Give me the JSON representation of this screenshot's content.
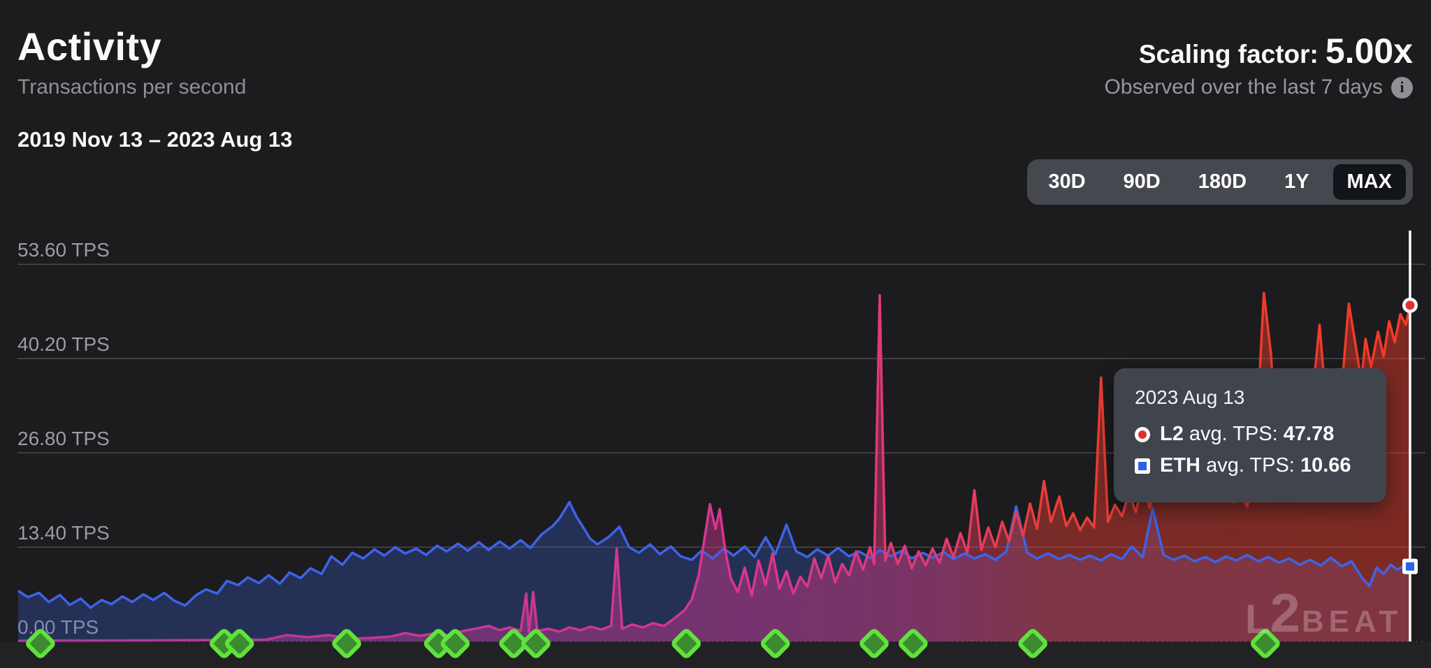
{
  "header": {
    "title": "Activity",
    "subtitle": "Transactions per second",
    "scaling_label": "Scaling factor:",
    "scaling_value": "5.00x",
    "observed_note": "Observed over the last 7 days"
  },
  "date_range": "2019 Nov 13 – 2023 Aug 13",
  "range_selector": {
    "options": [
      "30D",
      "90D",
      "180D",
      "1Y",
      "MAX"
    ],
    "selected": "MAX"
  },
  "tooltip": {
    "date": "2023 Aug 13",
    "rows": [
      {
        "name": "L2",
        "label": "avg. TPS:",
        "value": "47.78",
        "marker": "red-circle"
      },
      {
        "name": "ETH",
        "label": "avg. TPS:",
        "value": "10.66",
        "marker": "blue-square"
      }
    ]
  },
  "watermark": {
    "l": "L",
    "two": "2",
    "beat": "BEAT"
  },
  "colors": {
    "background": "#1c1c1e",
    "grid": "#47474b",
    "axis_text": "#9a9da2",
    "eth_line": "#3e63e8",
    "eth_fill": "rgba(62,99,232,0.28)",
    "l2_gradient": [
      "#a83a9c",
      "#d93690",
      "#e23a72",
      "#ea3e35",
      "#f23b28"
    ],
    "milestone_fill": "#3d8b31",
    "milestone_stroke": "#5fe33c",
    "crosshair": "#ffffff",
    "l2_marker": "#e03131",
    "eth_marker": "#2b62e8"
  },
  "chart_data": {
    "type": "line",
    "title": "Transactions per second",
    "x_range": [
      "2019 Nov 13",
      "2023 Aug 13"
    ],
    "ylabel": "TPS",
    "ylim": [
      0,
      58.4
    ],
    "grid": true,
    "y_ticks": [
      {
        "value": 53.6,
        "label": "53.60 TPS"
      },
      {
        "value": 40.2,
        "label": "40.20 TPS"
      },
      {
        "value": 26.8,
        "label": "26.80 TPS"
      },
      {
        "value": 13.4,
        "label": "13.40 TPS"
      },
      {
        "value": 0.0,
        "label": "0.00 TPS"
      }
    ],
    "series": [
      {
        "name": "ETH avg. TPS",
        "style": "eth",
        "points": [
          [
            0,
            7.2
          ],
          [
            0.007,
            6.3
          ],
          [
            0.015,
            6.9
          ],
          [
            0.022,
            5.6
          ],
          [
            0.03,
            6.6
          ],
          [
            0.037,
            5.2
          ],
          [
            0.045,
            6.1
          ],
          [
            0.052,
            4.8
          ],
          [
            0.06,
            5.9
          ],
          [
            0.067,
            5.3
          ],
          [
            0.075,
            6.4
          ],
          [
            0.082,
            5.6
          ],
          [
            0.09,
            6.7
          ],
          [
            0.097,
            5.9
          ],
          [
            0.105,
            6.9
          ],
          [
            0.112,
            5.8
          ],
          [
            0.12,
            5.1
          ],
          [
            0.128,
            6.6
          ],
          [
            0.135,
            7.4
          ],
          [
            0.143,
            6.8
          ],
          [
            0.15,
            8.6
          ],
          [
            0.158,
            8.0
          ],
          [
            0.165,
            9.1
          ],
          [
            0.173,
            8.3
          ],
          [
            0.18,
            9.4
          ],
          [
            0.188,
            8.2
          ],
          [
            0.195,
            9.8
          ],
          [
            0.203,
            9.0
          ],
          [
            0.21,
            10.4
          ],
          [
            0.218,
            9.6
          ],
          [
            0.225,
            12.1
          ],
          [
            0.233,
            10.9
          ],
          [
            0.24,
            12.6
          ],
          [
            0.248,
            11.8
          ],
          [
            0.256,
            13.1
          ],
          [
            0.263,
            12.2
          ],
          [
            0.271,
            13.4
          ],
          [
            0.278,
            12.5
          ],
          [
            0.286,
            13.2
          ],
          [
            0.293,
            12.3
          ],
          [
            0.301,
            13.6
          ],
          [
            0.308,
            12.8
          ],
          [
            0.316,
            13.9
          ],
          [
            0.323,
            12.9
          ],
          [
            0.331,
            14.1
          ],
          [
            0.338,
            13.0
          ],
          [
            0.346,
            14.2
          ],
          [
            0.353,
            13.2
          ],
          [
            0.361,
            14.4
          ],
          [
            0.368,
            13.3
          ],
          [
            0.376,
            15.2
          ],
          [
            0.384,
            16.4
          ],
          [
            0.389,
            17.5
          ],
          [
            0.396,
            19.8
          ],
          [
            0.401,
            17.8
          ],
          [
            0.406,
            16.2
          ],
          [
            0.411,
            14.6
          ],
          [
            0.416,
            13.8
          ],
          [
            0.424,
            14.8
          ],
          [
            0.432,
            16.3
          ],
          [
            0.439,
            13.4
          ],
          [
            0.446,
            12.6
          ],
          [
            0.454,
            13.8
          ],
          [
            0.461,
            12.4
          ],
          [
            0.469,
            13.5
          ],
          [
            0.476,
            12.1
          ],
          [
            0.484,
            11.6
          ],
          [
            0.491,
            12.9
          ],
          [
            0.499,
            11.8
          ],
          [
            0.507,
            13.2
          ],
          [
            0.514,
            12.2
          ],
          [
            0.522,
            13.5
          ],
          [
            0.529,
            12.0
          ],
          [
            0.537,
            14.8
          ],
          [
            0.544,
            12.4
          ],
          [
            0.552,
            16.6
          ],
          [
            0.559,
            12.8
          ],
          [
            0.567,
            12.0
          ],
          [
            0.574,
            13.1
          ],
          [
            0.582,
            12.2
          ],
          [
            0.589,
            13.3
          ],
          [
            0.597,
            12.1
          ],
          [
            0.604,
            12.8
          ],
          [
            0.612,
            11.9
          ],
          [
            0.619,
            13.0
          ],
          [
            0.627,
            12.1
          ],
          [
            0.635,
            12.9
          ],
          [
            0.642,
            11.8
          ],
          [
            0.65,
            12.6
          ],
          [
            0.657,
            11.9
          ],
          [
            0.665,
            12.7
          ],
          [
            0.672,
            11.7
          ],
          [
            0.68,
            12.5
          ],
          [
            0.687,
            11.8
          ],
          [
            0.695,
            12.4
          ],
          [
            0.702,
            11.6
          ],
          [
            0.71,
            12.8
          ],
          [
            0.717,
            19.2
          ],
          [
            0.725,
            12.6
          ],
          [
            0.732,
            11.8
          ],
          [
            0.74,
            12.5
          ],
          [
            0.748,
            11.7
          ],
          [
            0.755,
            12.3
          ],
          [
            0.763,
            11.6
          ],
          [
            0.77,
            12.2
          ],
          [
            0.778,
            11.5
          ],
          [
            0.785,
            12.4
          ],
          [
            0.793,
            11.7
          ],
          [
            0.8,
            13.5
          ],
          [
            0.808,
            12.0
          ],
          [
            0.815,
            18.9
          ],
          [
            0.823,
            12.3
          ],
          [
            0.83,
            11.6
          ],
          [
            0.838,
            12.2
          ],
          [
            0.845,
            11.4
          ],
          [
            0.853,
            12.0
          ],
          [
            0.86,
            11.3
          ],
          [
            0.868,
            12.1
          ],
          [
            0.875,
            11.5
          ],
          [
            0.883,
            12.3
          ],
          [
            0.891,
            11.4
          ],
          [
            0.898,
            12.0
          ],
          [
            0.906,
            11.2
          ],
          [
            0.913,
            11.8
          ],
          [
            0.921,
            10.9
          ],
          [
            0.928,
            11.6
          ],
          [
            0.936,
            10.8
          ],
          [
            0.943,
            11.9
          ],
          [
            0.951,
            10.7
          ],
          [
            0.958,
            11.4
          ],
          [
            0.966,
            8.9
          ],
          [
            0.971,
            7.9
          ],
          [
            0.976,
            10.5
          ],
          [
            0.981,
            9.6
          ],
          [
            0.986,
            10.9
          ],
          [
            0.991,
            10.2
          ],
          [
            0.996,
            10.8
          ],
          [
            1,
            10.66
          ]
        ]
      },
      {
        "name": "L2 avg. TPS",
        "style": "l2",
        "points": [
          [
            0,
            0.1
          ],
          [
            0.037,
            0.12
          ],
          [
            0.087,
            0.15
          ],
          [
            0.138,
            0.2
          ],
          [
            0.178,
            0.25
          ],
          [
            0.193,
            0.9
          ],
          [
            0.208,
            0.6
          ],
          [
            0.223,
            0.9
          ],
          [
            0.238,
            0.4
          ],
          [
            0.253,
            0.5
          ],
          [
            0.268,
            0.7
          ],
          [
            0.278,
            1.2
          ],
          [
            0.288,
            0.8
          ],
          [
            0.298,
            1.1
          ],
          [
            0.308,
            0.9
          ],
          [
            0.318,
            1.4
          ],
          [
            0.328,
            1.8
          ],
          [
            0.338,
            2.2
          ],
          [
            0.346,
            1.6
          ],
          [
            0.353,
            2.0
          ],
          [
            0.361,
            1.5
          ],
          [
            0.365,
            6.8
          ],
          [
            0.367,
            1.4
          ],
          [
            0.37,
            7.0
          ],
          [
            0.373,
            1.5
          ],
          [
            0.381,
            1.8
          ],
          [
            0.389,
            1.4
          ],
          [
            0.396,
            2.0
          ],
          [
            0.404,
            1.6
          ],
          [
            0.411,
            2.1
          ],
          [
            0.419,
            1.7
          ],
          [
            0.426,
            2.2
          ],
          [
            0.43,
            13.2
          ],
          [
            0.434,
            1.8
          ],
          [
            0.441,
            2.4
          ],
          [
            0.449,
            2.0
          ],
          [
            0.456,
            2.6
          ],
          [
            0.464,
            2.2
          ],
          [
            0.471,
            3.2
          ],
          [
            0.479,
            4.5
          ],
          [
            0.484,
            6.0
          ],
          [
            0.489,
            9.5
          ],
          [
            0.493,
            14.5
          ],
          [
            0.497,
            19.5
          ],
          [
            0.501,
            16.0
          ],
          [
            0.504,
            18.8
          ],
          [
            0.508,
            13.0
          ],
          [
            0.512,
            9.0
          ],
          [
            0.517,
            7.0
          ],
          [
            0.522,
            10.5
          ],
          [
            0.527,
            6.5
          ],
          [
            0.532,
            11.5
          ],
          [
            0.537,
            8.0
          ],
          [
            0.542,
            12.5
          ],
          [
            0.547,
            7.5
          ],
          [
            0.552,
            10.0
          ],
          [
            0.557,
            6.8
          ],
          [
            0.562,
            9.2
          ],
          [
            0.567,
            7.8
          ],
          [
            0.572,
            11.8
          ],
          [
            0.577,
            9.0
          ],
          [
            0.582,
            12.2
          ],
          [
            0.587,
            8.4
          ],
          [
            0.592,
            11.0
          ],
          [
            0.597,
            9.4
          ],
          [
            0.602,
            12.8
          ],
          [
            0.607,
            10.2
          ],
          [
            0.612,
            13.4
          ],
          [
            0.615,
            11.0
          ],
          [
            0.619,
            49.2
          ],
          [
            0.623,
            11.5
          ],
          [
            0.627,
            14.0
          ],
          [
            0.632,
            11.0
          ],
          [
            0.637,
            13.6
          ],
          [
            0.642,
            10.4
          ],
          [
            0.647,
            12.8
          ],
          [
            0.652,
            10.8
          ],
          [
            0.657,
            13.2
          ],
          [
            0.662,
            11.2
          ],
          [
            0.667,
            14.6
          ],
          [
            0.672,
            12.0
          ],
          [
            0.677,
            15.4
          ],
          [
            0.682,
            12.6
          ],
          [
            0.687,
            21.5
          ],
          [
            0.692,
            13.0
          ],
          [
            0.697,
            16.2
          ],
          [
            0.702,
            13.4
          ],
          [
            0.707,
            17.0
          ],
          [
            0.712,
            14.2
          ],
          [
            0.717,
            18.4
          ],
          [
            0.722,
            15.0
          ],
          [
            0.727,
            19.6
          ],
          [
            0.732,
            16.0
          ],
          [
            0.737,
            22.8
          ],
          [
            0.742,
            17.0
          ],
          [
            0.748,
            20.6
          ],
          [
            0.753,
            16.4
          ],
          [
            0.758,
            18.2
          ],
          [
            0.763,
            15.8
          ],
          [
            0.768,
            17.6
          ],
          [
            0.773,
            16.2
          ],
          [
            0.778,
            37.5
          ],
          [
            0.783,
            17.0
          ],
          [
            0.788,
            19.4
          ],
          [
            0.793,
            17.8
          ],
          [
            0.798,
            21.0
          ],
          [
            0.803,
            18.4
          ],
          [
            0.808,
            22.6
          ],
          [
            0.813,
            19.0
          ],
          [
            0.818,
            24.0
          ],
          [
            0.823,
            20.0
          ],
          [
            0.828,
            25.6
          ],
          [
            0.833,
            21.0
          ],
          [
            0.838,
            27.0
          ],
          [
            0.843,
            22.0
          ],
          [
            0.848,
            25.0
          ],
          [
            0.853,
            21.6
          ],
          [
            0.858,
            23.8
          ],
          [
            0.863,
            20.8
          ],
          [
            0.868,
            22.6
          ],
          [
            0.873,
            19.8
          ],
          [
            0.878,
            21.4
          ],
          [
            0.883,
            19.2
          ],
          [
            0.888,
            23.0
          ],
          [
            0.895,
            49.5
          ],
          [
            0.9,
            41.0
          ],
          [
            0.905,
            26.0
          ],
          [
            0.91,
            30.0
          ],
          [
            0.913,
            34.0
          ],
          [
            0.916,
            28.0
          ],
          [
            0.919,
            35.0
          ],
          [
            0.923,
            27.0
          ],
          [
            0.928,
            31.0
          ],
          [
            0.935,
            45.0
          ],
          [
            0.94,
            33.0
          ],
          [
            0.945,
            38.0
          ],
          [
            0.95,
            34.0
          ],
          [
            0.956,
            48.0
          ],
          [
            0.961,
            42.0
          ],
          [
            0.965,
            37.0
          ],
          [
            0.968,
            43.0
          ],
          [
            0.972,
            39.0
          ],
          [
            0.977,
            44.0
          ],
          [
            0.981,
            40.5
          ],
          [
            0.985,
            45.5
          ],
          [
            0.989,
            42.5
          ],
          [
            0.993,
            46.5
          ],
          [
            0.997,
            45.0
          ],
          [
            1,
            47.78
          ]
        ]
      }
    ],
    "milestones_x": [
      0.016,
      0.148,
      0.159,
      0.236,
      0.302,
      0.314,
      0.356,
      0.372,
      0.48,
      0.544,
      0.615,
      0.643,
      0.729,
      0.896
    ],
    "crosshair": {
      "x": 1.0,
      "l2_tps": 47.78,
      "eth_tps": 10.66
    },
    "legend_position": "tooltip"
  }
}
